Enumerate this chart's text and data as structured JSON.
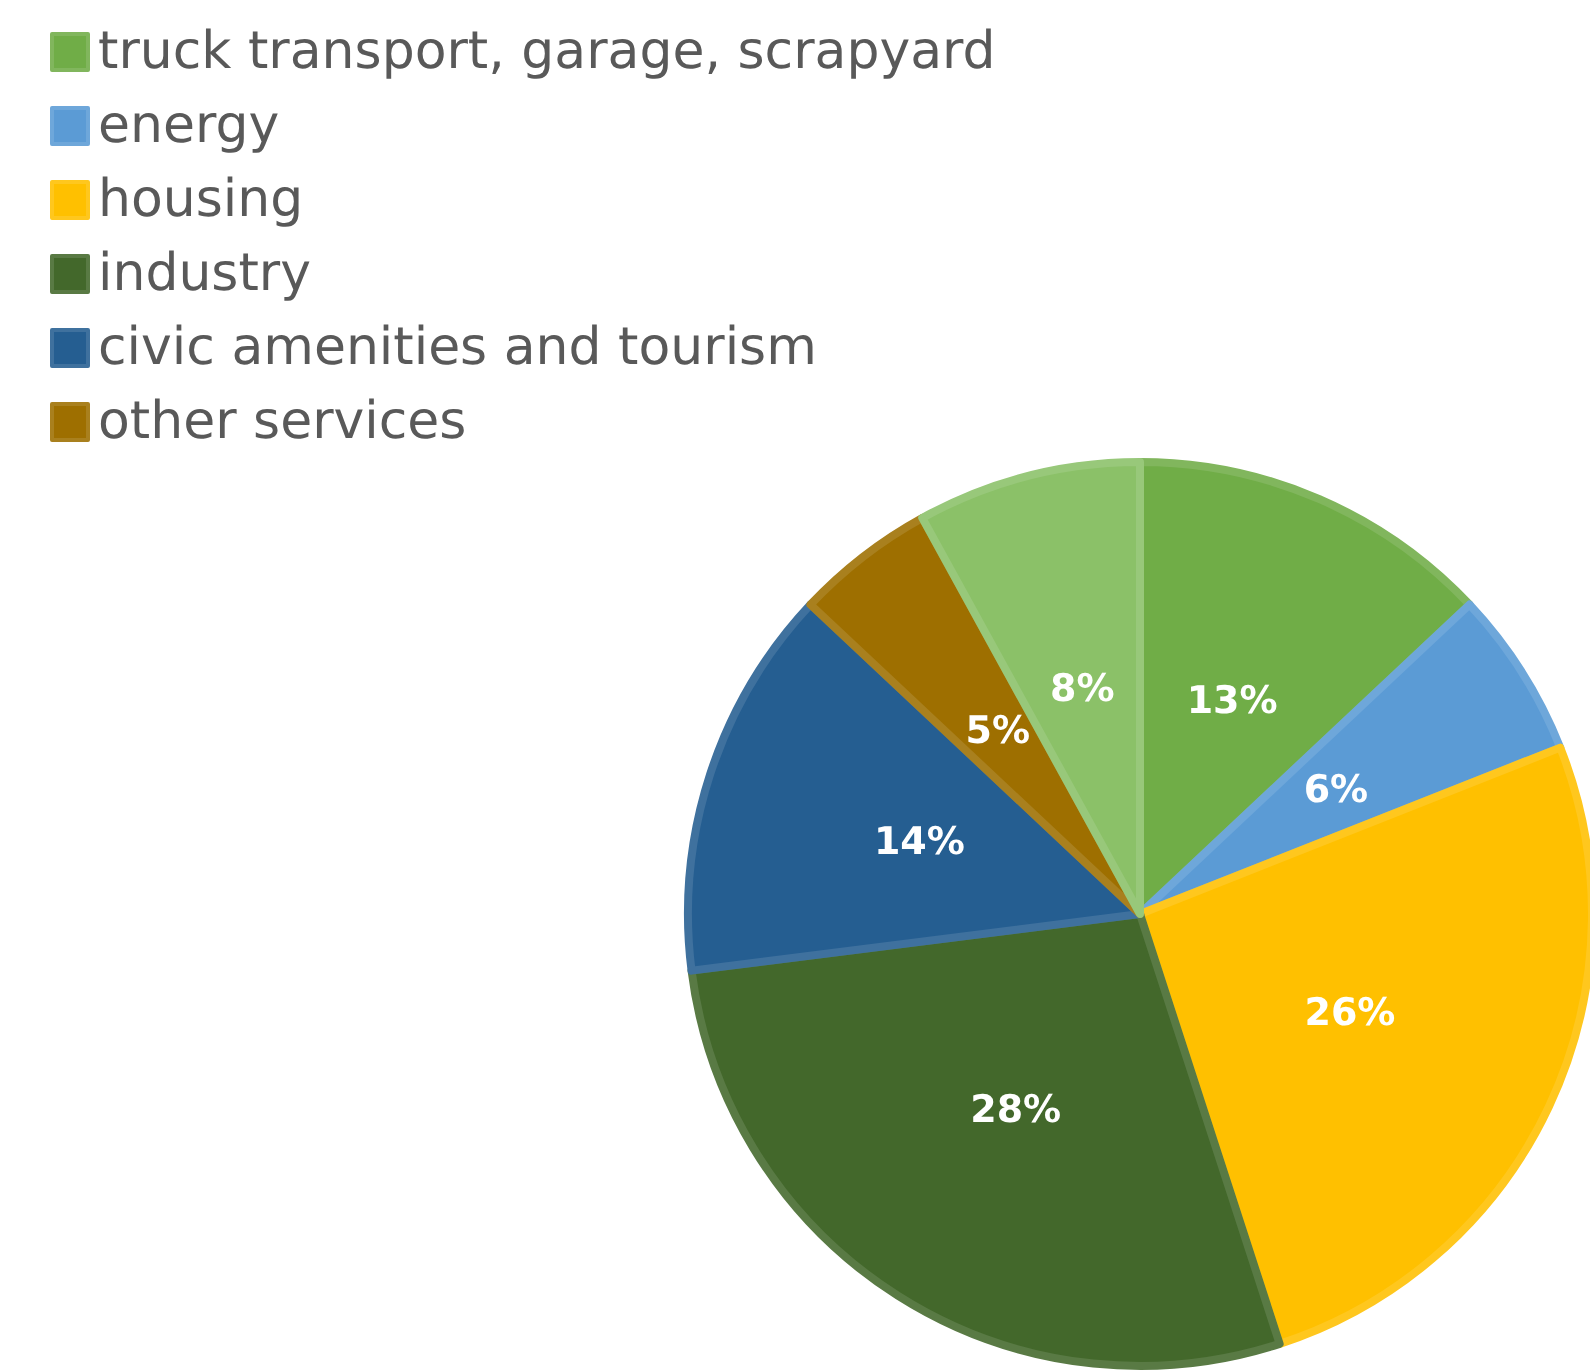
{
  "chart_data": {
    "type": "pie",
    "categories": [
      "truck transport, garage, scrapyard",
      "energy",
      "housing",
      "industry",
      "civic amenities and tourism",
      "other services",
      null
    ],
    "values": [
      13,
      6,
      26,
      28,
      14,
      5,
      8
    ],
    "colors": [
      "#70ad47",
      "#5b9bd5",
      "#ffc000",
      "#43682b",
      "#255e91",
      "#9e6f00",
      "#8bc168"
    ],
    "value_labels": [
      "13%",
      "6%",
      "26%",
      "28%",
      "14%",
      "5%",
      "8%"
    ],
    "legend": "top left"
  }
}
